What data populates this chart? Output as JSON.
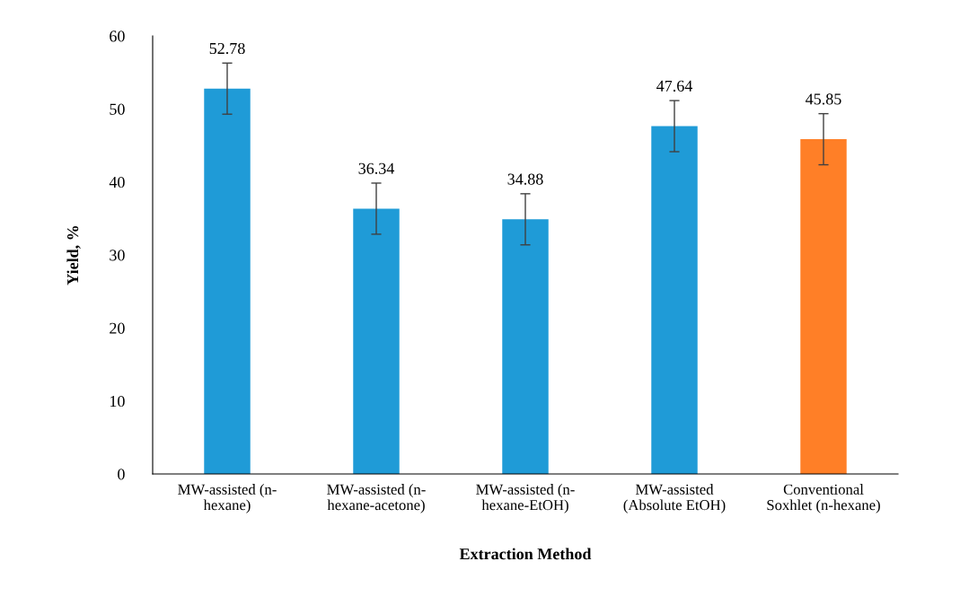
{
  "chart_data": {
    "type": "bar",
    "xlabel": "Extraction Method",
    "ylabel": "Yield, %",
    "categories": [
      "MW-assisted (n-\nhexane)",
      "MW-assisted (n-\nhexane-acetone)",
      "MW-assisted (n-\nhexane-EtOH)",
      "MW-assisted\n(Absolute EtOH)",
      "Conventional\nSoxhlet (n-hexane)"
    ],
    "values": [
      52.78,
      36.34,
      34.88,
      47.64,
      45.85
    ],
    "colors": [
      "#1f9bd7",
      "#1f9bd7",
      "#1f9bd7",
      "#1f9bd7",
      "#ff7f27"
    ],
    "errors": [
      3.5,
      3.5,
      3.5,
      3.5,
      3.5
    ],
    "data_labels": true,
    "ylim": [
      0,
      60
    ],
    "yticks": [
      0,
      10,
      20,
      30,
      40,
      50,
      60
    ],
    "grid": false
  }
}
